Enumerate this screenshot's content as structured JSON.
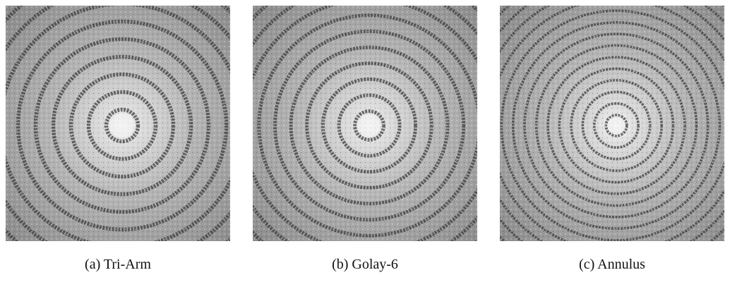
{
  "figure": {
    "panels": [
      {
        "label": "(a) Tri-Arm",
        "ring_count": 9
      },
      {
        "label": "(b) Golay-6",
        "ring_count": 10
      },
      {
        "label": "(c) Annulus",
        "ring_count": 14
      }
    ],
    "colors": {
      "background": "#ffffff",
      "field": "#8a8a8a",
      "center_glow": "#f4f4f4",
      "ring_dark": "#3c3c3c",
      "caption_text": "#111111"
    }
  }
}
